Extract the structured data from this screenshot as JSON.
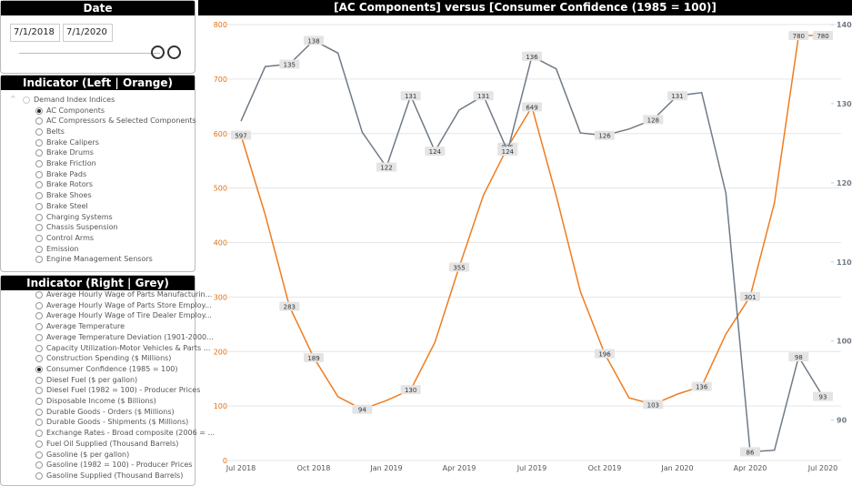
{
  "date_panel": {
    "title": "Date",
    "start": "7/1/2018",
    "end": "7/1/2020"
  },
  "left_panel": {
    "title": "Indicator (Left | Orange)",
    "group": "Demand Index Indices",
    "selected_index": 0,
    "items": [
      "AC Components",
      "AC Compressors & Selected Components",
      "Belts",
      "Brake Calipers",
      "Brake Drums",
      "Brake Friction",
      "Brake Pads",
      "Brake Rotors",
      "Brake Shoes",
      "Brake Steel",
      "Charging Systems",
      "Chassis Suspension",
      "Control Arms",
      "Emission",
      "Engine Management Sensors"
    ]
  },
  "right_panel": {
    "title": "Indicator (Right | Grey)",
    "selected_index": 7,
    "items": [
      "Average Hourly Wage of Parts Manufacturin...",
      "Average Hourly Wage of Parts Store Employ...",
      "Average Hourly Wage of Tire Dealer Employ...",
      "Average Temperature",
      "Average Temperature Deviation (1901-2000...",
      "Capacity Utilization-Motor Vehicles & Parts ...",
      "Construction Spending ($ Millions)",
      "Consumer Confidence (1985 = 100)",
      "Diesel Fuel ($ per gallon)",
      "Diesel Fuel (1982 = 100) - Producer Prices",
      "Disposable Income ($ Billions)",
      "Durable Goods - Orders ($ Millions)",
      "Durable Goods - Shipments ($ Millions)",
      "Exchange Rates - Broad composite (2006 = ...",
      "Fuel Oil Supplied (Thousand Barrels)",
      "Gasoline ($ per gallon)",
      "Gasoline (1982 = 100) - Producer Prices",
      "Gasoline Supplied (Thousand Barrels)"
    ]
  },
  "chart_data": {
    "type": "line",
    "title": "[AC Components]  versus  [Consumer Confidence (1985 = 100)]",
    "categories": [
      "Jul 2018",
      null,
      null,
      "Oct 2018",
      null,
      null,
      "Jan 2019",
      null,
      null,
      "Apr 2019",
      null,
      null,
      "Jul 2019",
      null,
      null,
      "Oct 2019",
      null,
      null,
      "Jan 2020",
      null,
      null,
      "Apr 2020",
      null,
      null,
      "Jul 2020"
    ],
    "series": [
      {
        "name": "AC Components",
        "color": "#f07c1e",
        "labeled_points": [
          0,
          2,
          3,
          5,
          7,
          9,
          11,
          12,
          15,
          17,
          19,
          21,
          23,
          24
        ],
        "values": [
          597,
          451,
          283,
          189,
          117,
          94,
          110,
          130,
          217,
          355,
          487,
          575,
          649,
          486,
          310,
          196,
          115,
          103,
          122,
          136,
          232,
          301,
          473,
          780,
          780
        ]
      },
      {
        "name": "Consumer Confidence (1985 = 100)",
        "color": "#6f7a86",
        "axis": "y2",
        "labeled_points": [
          2,
          3,
          6,
          7,
          8,
          10,
          11,
          12,
          15,
          17,
          18,
          21,
          23,
          24
        ],
        "values": [
          127.8,
          134.7,
          135,
          138,
          136.4,
          126.4,
          122,
          131,
          124,
          129.2,
          131,
          124,
          136,
          134.4,
          126.3,
          126,
          126.8,
          128,
          131,
          131.4,
          118.7,
          86,
          86.2,
          98,
          93
        ]
      }
    ],
    "ylim": [
      0,
      800
    ],
    "yticks": [
      0,
      100,
      200,
      300,
      400,
      500,
      600,
      700,
      800
    ],
    "y2lim": [
      84.9,
      140
    ],
    "y2ticks": [
      90,
      100,
      110,
      120,
      130,
      140
    ],
    "grid": true
  }
}
